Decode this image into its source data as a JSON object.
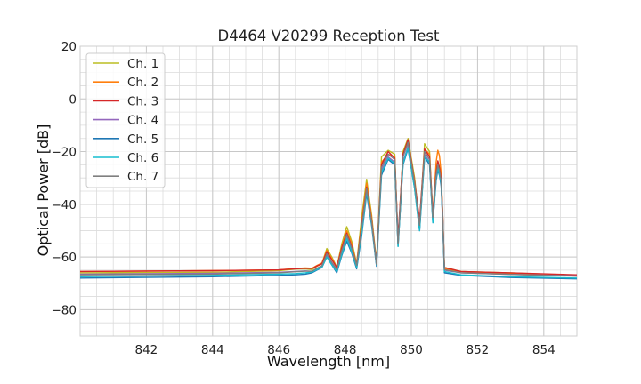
{
  "chart_data": {
    "type": "line",
    "title": "D4464 V20299 Reception Test",
    "xlabel": "Wavelength [nm]",
    "ylabel": "Optical Power [dB]",
    "xlim": [
      840.0,
      855.0
    ],
    "ylim": [
      -90,
      20
    ],
    "xticks": [
      842,
      844,
      846,
      848,
      850,
      852,
      854
    ],
    "yticks": [
      -80,
      -60,
      -40,
      -20,
      0,
      20
    ],
    "x_minor_step": 0.5,
    "y_minor_step": 5,
    "grid": true,
    "legend_position": "top-left",
    "series": [
      {
        "name": "Ch. 1",
        "color": "#bcbd22",
        "x": [
          840.0,
          844.0,
          846.0,
          846.5,
          846.8,
          847.0,
          847.15,
          847.3,
          847.45,
          847.6,
          847.75,
          847.9,
          848.05,
          848.2,
          848.35,
          848.5,
          848.65,
          848.8,
          848.95,
          849.1,
          849.3,
          849.5,
          849.6,
          849.75,
          849.9,
          850.1,
          850.25,
          850.4,
          850.55,
          850.65,
          850.75,
          850.8,
          850.85,
          850.9,
          850.95,
          851.0,
          851.5,
          853.0,
          855.0
        ],
        "y": [
          -66.0,
          -65.8,
          -65.2,
          -64.6,
          -64.5,
          -64.8,
          -63.5,
          -62.5,
          -56.8,
          -60.0,
          -63.8,
          -55.0,
          -48.5,
          -54.0,
          -62.5,
          -45.0,
          -30.5,
          -44.0,
          -62.0,
          -22.0,
          -19.5,
          -21.0,
          -55.0,
          -20.0,
          -15.0,
          -30.0,
          -48.0,
          -17.0,
          -20.0,
          -45.0,
          -27.0,
          -24.0,
          -26.0,
          -30.0,
          -45.0,
          -64.0,
          -65.5,
          -66.0,
          -67.0
        ]
      },
      {
        "name": "Ch. 2",
        "color": "#ff7f0e",
        "x": [
          840.0,
          844.0,
          846.0,
          846.5,
          846.8,
          847.0,
          847.15,
          847.3,
          847.45,
          847.6,
          847.75,
          847.9,
          848.05,
          848.2,
          848.35,
          848.5,
          848.65,
          848.8,
          848.95,
          849.1,
          849.3,
          849.5,
          849.6,
          849.75,
          849.9,
          850.1,
          850.25,
          850.4,
          850.55,
          850.65,
          850.75,
          850.8,
          850.85,
          850.9,
          850.95,
          851.0,
          851.5,
          853.0,
          855.0
        ],
        "y": [
          -65.5,
          -65.2,
          -64.9,
          -64.4,
          -64.2,
          -64.3,
          -63.2,
          -62.3,
          -57.5,
          -60.5,
          -64.0,
          -56.0,
          -50.0,
          -55.0,
          -63.0,
          -47.0,
          -32.0,
          -45.0,
          -62.5,
          -24.0,
          -21.0,
          -22.0,
          -54.0,
          -21.0,
          -17.0,
          -31.0,
          -47.0,
          -19.0,
          -21.0,
          -44.0,
          -24.0,
          -19.5,
          -21.5,
          -28.0,
          -44.0,
          -64.5,
          -65.5,
          -66.2,
          -67.0
        ]
      },
      {
        "name": "Ch. 3",
        "color": "#d62728",
        "x": [
          840.0,
          844.0,
          846.0,
          846.5,
          846.8,
          847.0,
          847.15,
          847.3,
          847.45,
          847.6,
          847.75,
          847.9,
          848.05,
          848.2,
          848.35,
          848.5,
          848.65,
          848.8,
          848.95,
          849.1,
          849.3,
          849.5,
          849.6,
          849.75,
          849.9,
          850.1,
          850.25,
          850.4,
          850.55,
          850.65,
          850.75,
          850.8,
          850.85,
          850.9,
          850.95,
          851.0,
          851.5,
          853.0,
          855.0
        ],
        "y": [
          -65.5,
          -65.2,
          -64.9,
          -64.5,
          -64.3,
          -64.4,
          -63.4,
          -62.6,
          -58.0,
          -61.0,
          -64.0,
          -56.5,
          -51.0,
          -56.0,
          -63.0,
          -48.0,
          -33.5,
          -46.0,
          -62.5,
          -25.0,
          -20.0,
          -22.5,
          -53.0,
          -21.0,
          -15.5,
          -31.5,
          -46.0,
          -19.0,
          -22.0,
          -44.0,
          -28.0,
          -23.5,
          -26.0,
          -30.0,
          -44.0,
          -64.0,
          -65.5,
          -66.0,
          -66.8
        ]
      },
      {
        "name": "Ch. 4",
        "color": "#9467bd",
        "x": [
          840.0,
          844.0,
          846.0,
          846.5,
          846.8,
          847.0,
          847.15,
          847.3,
          847.45,
          847.6,
          847.75,
          847.9,
          848.05,
          848.2,
          848.35,
          848.5,
          848.65,
          848.8,
          848.95,
          849.1,
          849.3,
          849.5,
          849.6,
          849.75,
          849.9,
          850.1,
          850.25,
          850.4,
          850.55,
          850.65,
          850.75,
          850.8,
          850.85,
          850.9,
          850.95,
          851.0,
          851.5,
          853.0,
          855.0
        ],
        "y": [
          -66.5,
          -66.2,
          -65.8,
          -65.5,
          -65.3,
          -65.5,
          -64.5,
          -63.5,
          -59.5,
          -62.5,
          -65.0,
          -58.0,
          -52.0,
          -57.0,
          -63.5,
          -50.0,
          -35.0,
          -47.0,
          -63.0,
          -27.0,
          -22.0,
          -24.0,
          -55.0,
          -24.0,
          -18.0,
          -33.0,
          -49.0,
          -21.0,
          -24.0,
          -46.0,
          -30.0,
          -26.0,
          -28.0,
          -32.0,
          -46.0,
          -65.0,
          -66.0,
          -66.6,
          -67.2
        ]
      },
      {
        "name": "Ch. 5",
        "color": "#1f77b4",
        "x": [
          840.0,
          844.0,
          846.0,
          846.5,
          846.8,
          847.0,
          847.15,
          847.3,
          847.45,
          847.6,
          847.75,
          847.9,
          848.05,
          848.2,
          848.35,
          848.5,
          848.65,
          848.8,
          848.95,
          849.1,
          849.3,
          849.5,
          849.6,
          849.75,
          849.9,
          850.1,
          850.25,
          850.4,
          850.55,
          850.65,
          850.75,
          850.8,
          850.85,
          850.9,
          850.95,
          851.0,
          851.5,
          853.0,
          855.0
        ],
        "y": [
          -68.0,
          -67.5,
          -67.0,
          -66.8,
          -66.5,
          -66.0,
          -65.0,
          -64.0,
          -60.0,
          -63.0,
          -66.0,
          -59.5,
          -54.0,
          -58.5,
          -64.5,
          -52.0,
          -36.0,
          -48.0,
          -63.5,
          -29.0,
          -23.0,
          -25.0,
          -56.0,
          -25.0,
          -19.0,
          -34.0,
          -50.0,
          -22.0,
          -25.0,
          -47.0,
          -31.0,
          -27.0,
          -29.0,
          -33.0,
          -47.0,
          -66.0,
          -67.0,
          -67.8,
          -68.3
        ]
      },
      {
        "name": "Ch. 6",
        "color": "#17becf",
        "x": [
          840.0,
          844.0,
          846.0,
          846.5,
          846.8,
          847.0,
          847.15,
          847.3,
          847.45,
          847.6,
          847.75,
          847.9,
          848.05,
          848.2,
          848.35,
          848.5,
          848.65,
          848.8,
          848.95,
          849.1,
          849.3,
          849.5,
          849.6,
          849.75,
          849.9,
          850.1,
          850.25,
          850.4,
          850.55,
          850.65,
          850.75,
          850.8,
          850.85,
          850.9,
          850.95,
          851.0,
          851.5,
          853.0,
          855.0
        ],
        "y": [
          -67.5,
          -67.0,
          -66.5,
          -66.3,
          -66.0,
          -65.7,
          -64.8,
          -63.8,
          -60.0,
          -63.0,
          -65.5,
          -59.0,
          -53.0,
          -58.0,
          -64.0,
          -51.0,
          -35.0,
          -47.5,
          -63.0,
          -28.0,
          -22.5,
          -24.5,
          -56.0,
          -24.5,
          -18.5,
          -34.0,
          -50.0,
          -22.0,
          -24.0,
          -47.0,
          -30.0,
          -26.0,
          -28.5,
          -32.0,
          -46.0,
          -65.5,
          -66.8,
          -67.5,
          -68.0
        ]
      },
      {
        "name": "Ch. 7",
        "color": "#7f7f7f",
        "x": [
          840.0,
          844.0,
          846.0,
          846.5,
          846.8,
          847.0,
          847.15,
          847.3,
          847.45,
          847.6,
          847.75,
          847.9,
          848.05,
          848.2,
          848.35,
          848.5,
          848.65,
          848.8,
          848.95,
          849.1,
          849.3,
          849.5,
          849.6,
          849.75,
          849.9,
          850.1,
          850.25,
          850.4,
          850.55,
          850.65,
          850.75,
          850.8,
          850.85,
          850.9,
          850.95,
          851.0,
          851.5,
          853.0,
          855.0
        ],
        "y": [
          -66.8,
          -66.5,
          -66.0,
          -65.6,
          -65.4,
          -65.4,
          -64.3,
          -63.3,
          -58.8,
          -62.0,
          -64.8,
          -57.5,
          -51.5,
          -56.5,
          -63.2,
          -49.0,
          -34.0,
          -46.5,
          -62.8,
          -26.0,
          -21.0,
          -23.0,
          -55.0,
          -22.0,
          -16.5,
          -32.0,
          -48.0,
          -20.0,
          -23.0,
          -45.0,
          -29.0,
          -25.0,
          -27.0,
          -31.0,
          -45.0,
          -64.8,
          -66.0,
          -66.6,
          -67.3
        ]
      }
    ]
  }
}
